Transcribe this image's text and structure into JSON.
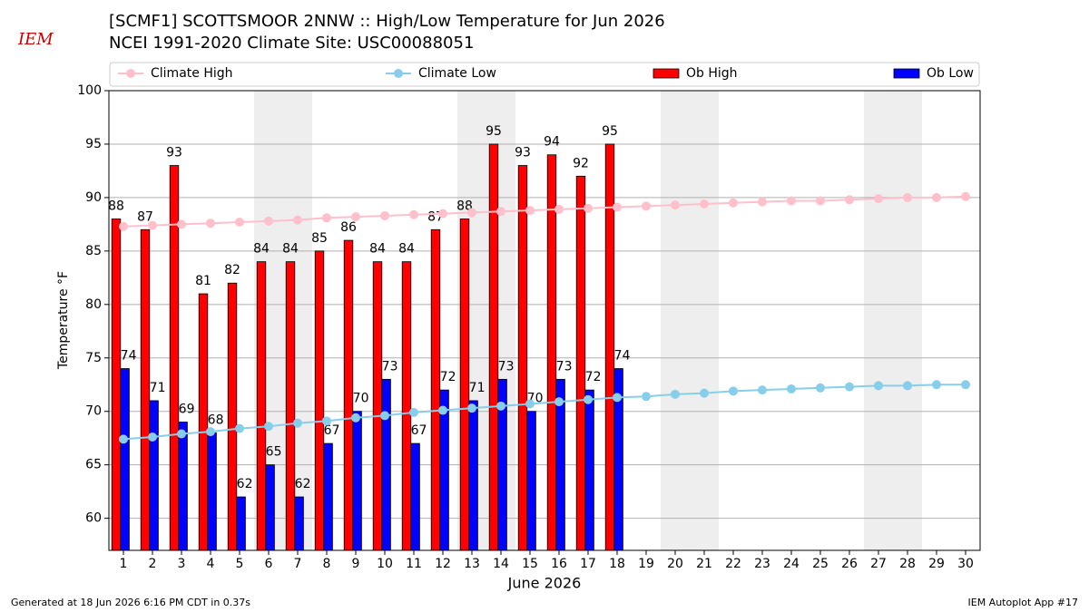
{
  "chart_data": {
    "type": "bar",
    "title": "[SCMF1] SCOTTSMOOR 2NNW :: High/Low Temperature for Jun 2026",
    "subtitle": "NCEI 1991-2020 Climate Site: USC00088051",
    "logo": "IEM",
    "xlabel": "June 2026",
    "ylabel": "Temperature °F",
    "footer_left": "Generated at 18 Jun 2026 6:16 PM CDT in 0.37s",
    "footer_right": "IEM Autoplot App #17",
    "x": [
      1,
      2,
      3,
      4,
      5,
      6,
      7,
      8,
      9,
      10,
      11,
      12,
      13,
      14,
      15,
      16,
      17,
      18,
      19,
      20,
      21,
      22,
      23,
      24,
      25,
      26,
      27,
      28,
      29,
      30
    ],
    "xlim": [
      0.5,
      30.5
    ],
    "xticks": [
      1,
      2,
      3,
      4,
      5,
      6,
      7,
      8,
      9,
      10,
      11,
      12,
      13,
      14,
      15,
      16,
      17,
      18,
      19,
      20,
      21,
      22,
      23,
      24,
      25,
      26,
      27,
      28,
      29,
      30
    ],
    "ylim": [
      57,
      100
    ],
    "yticks": [
      60,
      65,
      70,
      75,
      80,
      85,
      90,
      95,
      100
    ],
    "grid": true,
    "shaded_days": [
      6,
      7,
      13,
      14,
      20,
      21,
      27,
      28
    ],
    "series": [
      {
        "name": "Climate High",
        "type": "line",
        "color": "#ffc0cb",
        "values": [
          87.3,
          87.4,
          87.5,
          87.6,
          87.7,
          87.8,
          87.9,
          88.1,
          88.2,
          88.3,
          88.4,
          88.5,
          88.6,
          88.7,
          88.8,
          88.9,
          89.0,
          89.1,
          89.2,
          89.3,
          89.4,
          89.5,
          89.6,
          89.7,
          89.7,
          89.8,
          89.9,
          90.0,
          90.0,
          90.1
        ]
      },
      {
        "name": "Climate Low",
        "type": "line",
        "color": "#87ceeb",
        "values": [
          67.4,
          67.6,
          67.9,
          68.1,
          68.4,
          68.6,
          68.9,
          69.1,
          69.4,
          69.6,
          69.9,
          70.1,
          70.3,
          70.5,
          70.7,
          70.9,
          71.1,
          71.3,
          71.4,
          71.6,
          71.7,
          71.9,
          72.0,
          72.1,
          72.2,
          72.3,
          72.4,
          72.4,
          72.5,
          72.5
        ]
      },
      {
        "name": "Ob High",
        "type": "bar",
        "color": "#ff0000",
        "values": [
          88,
          87,
          93,
          81,
          82,
          84,
          84,
          85,
          86,
          84,
          84,
          87,
          88,
          95,
          93,
          94,
          92,
          95,
          null,
          null,
          null,
          null,
          null,
          null,
          null,
          null,
          null,
          null,
          null,
          null
        ]
      },
      {
        "name": "Ob Low",
        "type": "bar",
        "color": "#0000ff",
        "values": [
          74,
          71,
          69,
          68,
          62,
          65,
          62,
          67,
          70,
          73,
          67,
          72,
          71,
          73,
          70,
          73,
          72,
          74,
          null,
          null,
          null,
          null,
          null,
          null,
          null,
          null,
          null,
          null,
          null,
          null
        ]
      }
    ]
  }
}
